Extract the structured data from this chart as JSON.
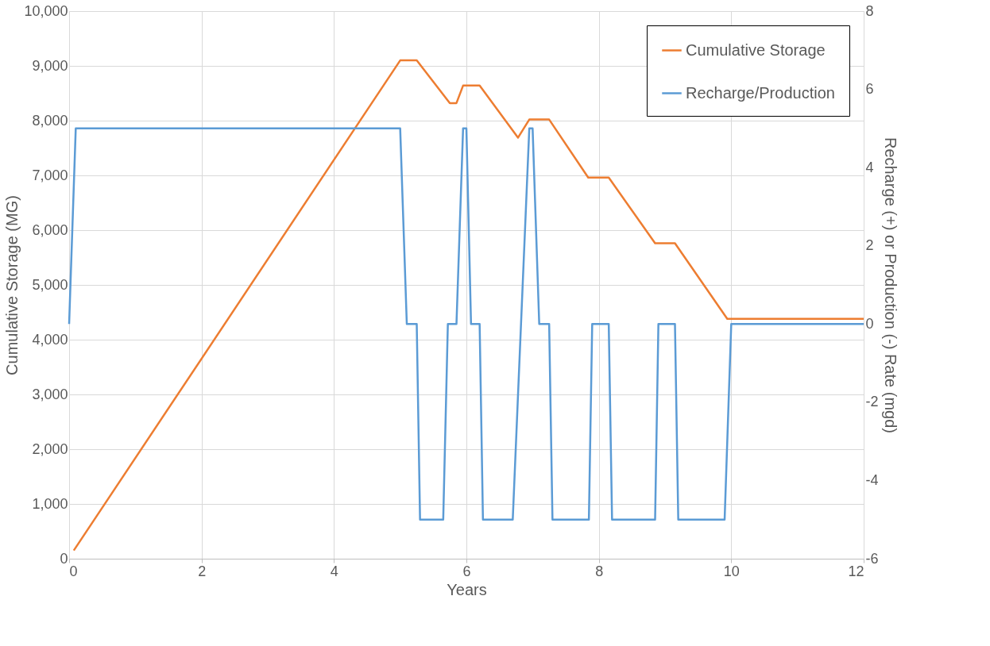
{
  "chart_data": {
    "type": "line",
    "xlabel": "Years",
    "ylabel": "Cumulative Storage (MG)",
    "y2label": "Recharge (+) or Production (-) Rate (mgd)",
    "xlim": [
      0,
      12
    ],
    "xticks": [
      0,
      2,
      4,
      6,
      8,
      10,
      12
    ],
    "ylim": [
      0,
      10000
    ],
    "yticks": [
      0,
      {
        "value": 1000,
        "label": "1,000"
      },
      {
        "value": 2000,
        "label": "2,000"
      },
      {
        "value": 3000,
        "label": "3,000"
      },
      {
        "value": 4000,
        "label": "4,000"
      },
      {
        "value": 5000,
        "label": "5,000"
      },
      {
        "value": 6000,
        "label": "6,000"
      },
      {
        "value": 7000,
        "label": "7,000"
      },
      {
        "value": 8000,
        "label": "8,000"
      },
      {
        "value": 9000,
        "label": "9,000"
      },
      {
        "value": 10000,
        "label": "10,000"
      }
    ],
    "y2lim": [
      -6,
      8
    ],
    "y2ticks": [
      -6,
      -4,
      -2,
      0,
      2,
      4,
      6,
      8
    ],
    "grid": true,
    "legend": "top right",
    "marker": "none",
    "line_style": "solid",
    "series": [
      {
        "name": "Cumulative Storage",
        "color": "#ed7d31",
        "x": [
          0.07,
          5.0,
          5.25,
          5.75,
          5.85,
          5.95,
          6.2,
          6.78,
          6.95,
          7.25,
          7.84,
          8.15,
          8.85,
          9.15,
          9.94,
          12
        ],
        "values": [
          150,
          9100,
          9100,
          8320,
          8320,
          8640,
          8640,
          7690,
          8020,
          8020,
          6960,
          6960,
          5760,
          5760,
          4380,
          4380
        ]
      },
      {
        "name": "Recharge/Production",
        "color": "#5b9bd5",
        "axis": "y2",
        "x": [
          0,
          0.1,
          5.0,
          5.1,
          5.25,
          5.3,
          5.65,
          5.72,
          5.85,
          5.95,
          6.0,
          6.07,
          6.2,
          6.25,
          6.7,
          6.95,
          7.0,
          7.1,
          7.25,
          7.3,
          7.85,
          7.9,
          8.15,
          8.2,
          8.85,
          8.9,
          9.15,
          9.2,
          9.9,
          10.0,
          12
        ],
        "values": [
          0,
          5,
          5,
          0,
          0,
          -5,
          -5,
          0,
          0,
          5,
          5,
          0,
          0,
          -5,
          -5,
          5,
          5,
          0,
          0,
          -5,
          -5,
          0,
          0,
          -5,
          -5,
          0,
          0,
          -5,
          -5,
          0,
          0
        ]
      }
    ]
  }
}
